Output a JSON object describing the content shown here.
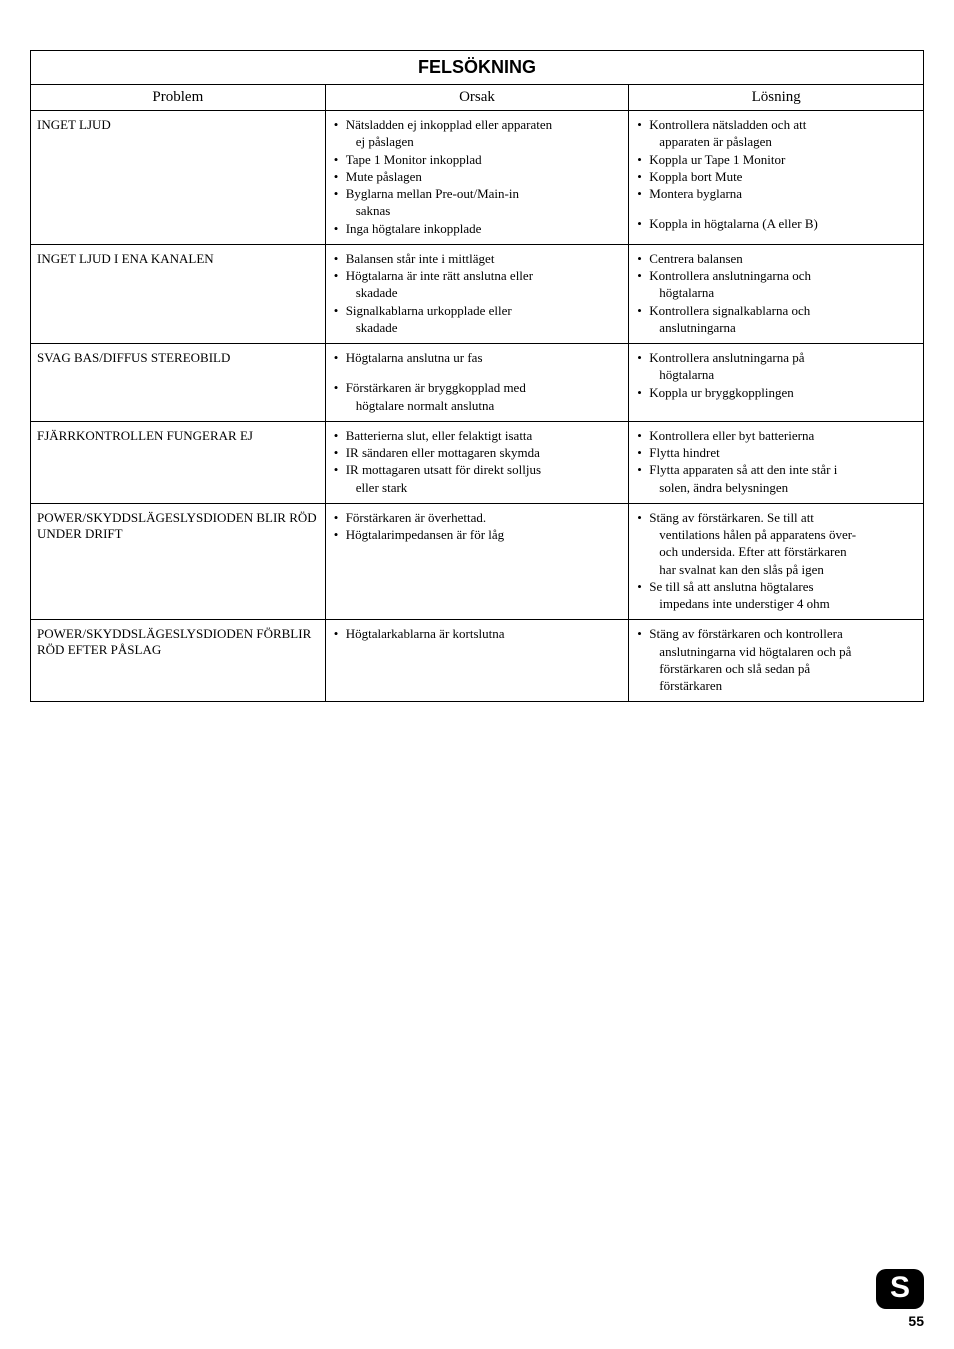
{
  "title": "FELSÖKNING",
  "headers": {
    "col1": "Problem",
    "col2": "Orsak",
    "col3": "Lösning"
  },
  "rows": [
    {
      "problem": "INGET LJUD",
      "orsak": [
        {
          "t": "Nätsladden ej inkopplad eller apparaten"
        },
        {
          "t": "ej påslagen",
          "indent": true
        },
        {
          "t": "Tape 1 Monitor inkopplad"
        },
        {
          "t": "Mute påslagen"
        },
        {
          "t": "Byglarna mellan Pre-out/Main-in"
        },
        {
          "t": "saknas",
          "indent": true
        },
        {
          "t": "Inga högtalare inkopplade"
        }
      ],
      "losning": [
        {
          "t": "Kontrollera nätsladden och att"
        },
        {
          "t": "apparaten är påslagen",
          "indent": true
        },
        {
          "t": "Koppla ur Tape 1 Monitor"
        },
        {
          "t": "Koppla bort Mute"
        },
        {
          "t": "Montera byglarna"
        },
        {
          "t": "Koppla in högtalarna (A eller B)",
          "spaced": true
        }
      ]
    },
    {
      "problem": "INGET LJUD I ENA KANALEN",
      "orsak": [
        {
          "t": "Balansen står inte i mittläget"
        },
        {
          "t": "Högtalarna är inte rätt anslutna eller"
        },
        {
          "t": "skadade",
          "indent": true
        },
        {
          "t": "Signalkablarna urkopplade eller"
        },
        {
          "t": "skadade",
          "indent": true
        }
      ],
      "losning": [
        {
          "t": "Centrera balansen"
        },
        {
          "t": "Kontrollera anslutningarna och"
        },
        {
          "t": "högtalarna",
          "indent": true
        },
        {
          "t": "Kontrollera signalkablarna och"
        },
        {
          "t": "anslutningarna",
          "indent": true
        }
      ]
    },
    {
      "problem": "SVAG BAS/DIFFUS STEREOBILD",
      "orsak": [
        {
          "t": "Högtalarna anslutna ur fas"
        },
        {
          "t": "Förstärkaren är bryggkopplad med",
          "spaced": true
        },
        {
          "t": "högtalare normalt anslutna",
          "indent": true
        }
      ],
      "losning": [
        {
          "t": "Kontrollera anslutningarna på"
        },
        {
          "t": "högtalarna",
          "indent": true
        },
        {
          "t": "Koppla ur bryggkopplingen"
        }
      ]
    },
    {
      "problem": "FJÄRRKONTROLLEN FUNGERAR EJ",
      "orsak": [
        {
          "t": "Batterierna slut, eller felaktigt isatta"
        },
        {
          "t": "IR sändaren eller mottagaren skymda"
        },
        {
          "t": "IR mottagaren utsatt för direkt solljus"
        },
        {
          "t": "eller stark",
          "indent": true
        }
      ],
      "losning": [
        {
          "t": "Kontrollera eller byt batterierna"
        },
        {
          "t": "Flytta hindret"
        },
        {
          "t": "Flytta apparaten så att den inte står i"
        },
        {
          "t": "solen, ändra belysningen",
          "indent": true
        }
      ]
    },
    {
      "problem": "POWER/SKYDDSLÄGESLYSDIODEN BLIR RÖD UNDER DRIFT",
      "orsak": [
        {
          "t": "Förstärkaren är överhettad."
        },
        {
          "t": "Högtalarimpedansen är för låg"
        }
      ],
      "losning": [
        {
          "t": "Stäng av förstärkaren. Se till att"
        },
        {
          "t": "ventilations hålen på apparatens över-",
          "indent": true
        },
        {
          "t": "och undersida. Efter att förstärkaren",
          "indent": true
        },
        {
          "t": "har svalnat kan den slås på igen",
          "indent": true
        },
        {
          "t": "Se till så att anslutna högtalares"
        },
        {
          "t": "impedans inte understiger 4 ohm",
          "indent": true
        }
      ]
    },
    {
      "problem": "POWER/SKYDDSLÄGESLYSDIODEN FÖRBLIR RÖD EFTER PÅSLAG",
      "orsak": [
        {
          "t": "Högtalarkablarna är kortslutna"
        }
      ],
      "losning": [
        {
          "t": "Stäng av förstärkaren och kontrollera"
        },
        {
          "t": "anslutningarna vid högtalaren och på",
          "indent": true
        },
        {
          "t": "förstärkaren och slå sedan på",
          "indent": true
        },
        {
          "t": "förstärkaren",
          "indent": true
        }
      ]
    }
  ],
  "footer": {
    "badge": "S",
    "page": "55"
  },
  "colwidths": {
    "c1": "33%",
    "c2": "34%",
    "c3": "33%"
  }
}
